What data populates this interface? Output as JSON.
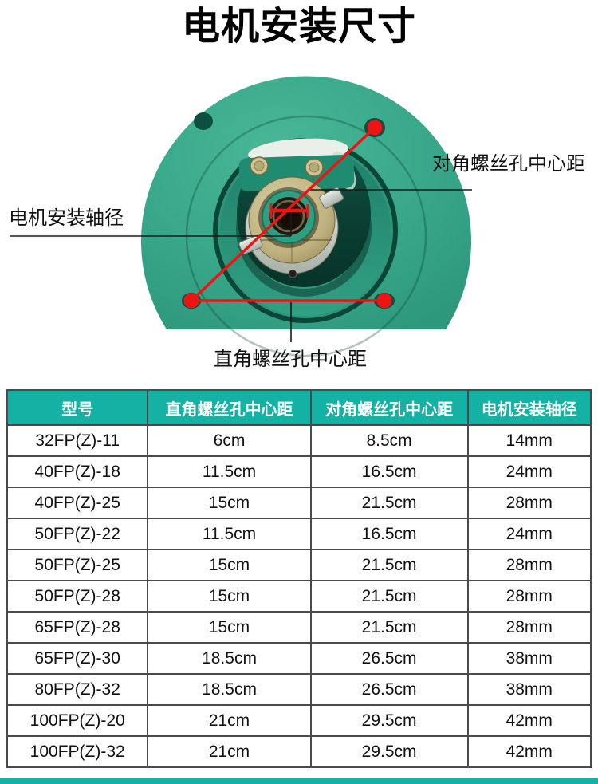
{
  "page": {
    "title": "电机安装尺寸"
  },
  "diagram": {
    "labels": {
      "diagonal": "对角螺丝孔中心距",
      "shaft": "电机安装轴径",
      "right_angle": "直角螺丝孔中心距"
    },
    "colors": {
      "flange_green": "#36a287",
      "annotation_red": "#ee1414",
      "leader_black": "#1a1a1a"
    }
  },
  "table": {
    "headers": [
      "型号",
      "直角螺丝孔中心距",
      "对角螺丝孔中心距",
      "电机安装轴径"
    ],
    "rows": [
      [
        "32FP(Z)-11",
        "6cm",
        "8.5cm",
        "14mm"
      ],
      [
        "40FP(Z)-18",
        "11.5cm",
        "16.5cm",
        "24mm"
      ],
      [
        "40FP(Z)-25",
        "15cm",
        "21.5cm",
        "28mm"
      ],
      [
        "50FP(Z)-22",
        "11.5cm",
        "16.5cm",
        "24mm"
      ],
      [
        "50FP(Z)-25",
        "15cm",
        "21.5cm",
        "28mm"
      ],
      [
        "50FP(Z)-28",
        "15cm",
        "21.5cm",
        "28mm"
      ],
      [
        "65FP(Z)-28",
        "15cm",
        "21.5cm",
        "28mm"
      ],
      [
        "65FP(Z)-30",
        "18.5cm",
        "26.5cm",
        "38mm"
      ],
      [
        "80FP(Z)-32",
        "18.5cm",
        "26.5cm",
        "38mm"
      ],
      [
        "100FP(Z)-20",
        "21cm",
        "29.5cm",
        "42mm"
      ],
      [
        "100FP(Z)-32",
        "21cm",
        "29.5cm",
        "42mm"
      ]
    ]
  },
  "theme": {
    "accent_teal": "#13b2a5",
    "table_border": "#4a4a4a"
  }
}
